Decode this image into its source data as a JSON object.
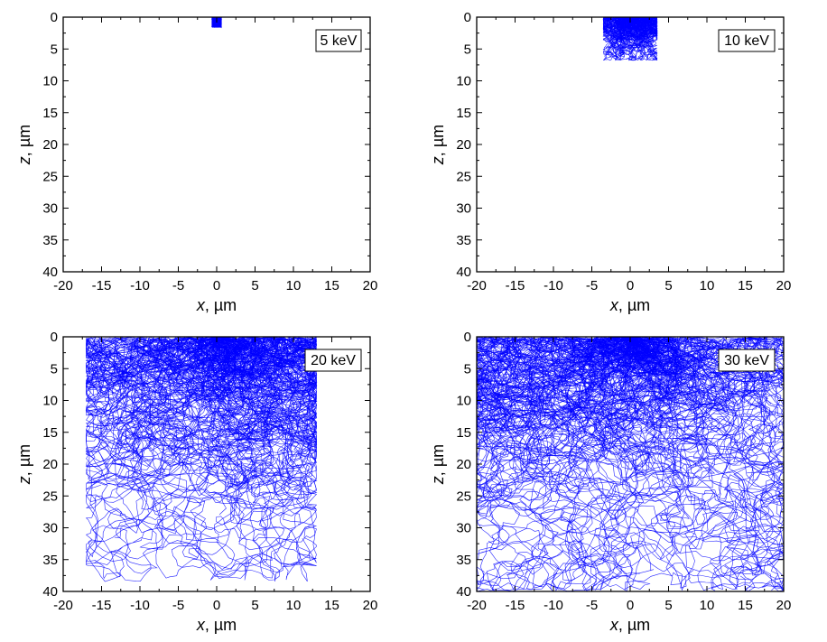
{
  "colors": {
    "trajectory": "#0000ff",
    "axes": "#000000",
    "background": "#ffffff"
  },
  "chart_data": [
    {
      "type": "scatter",
      "title": "",
      "annotation": "5 keV",
      "energy_keV": 5,
      "xlabel_var": "x",
      "xlabel_unit": ", µm",
      "ylabel_var": "z",
      "ylabel_unit": ", µm",
      "xlim": [
        -20,
        20
      ],
      "ylim": [
        40,
        0
      ],
      "xticks": [
        "-20",
        "-15",
        "-10",
        "-5",
        "0",
        "5",
        "10",
        "15",
        "20"
      ],
      "yticks": [
        "0",
        "5",
        "10",
        "15",
        "20",
        "25",
        "30",
        "35",
        "40"
      ],
      "series": [
        {
          "name": "electron trajectories",
          "extent_x": [
            -0.6,
            0.6
          ],
          "max_depth": 1.6,
          "tracks": 40,
          "spread": 0.25
        }
      ]
    },
    {
      "type": "scatter",
      "title": "",
      "annotation": "10 keV",
      "energy_keV": 10,
      "xlabel_var": "x",
      "xlabel_unit": ", µm",
      "ylabel_var": "z",
      "ylabel_unit": ", µm",
      "xlim": [
        -20,
        20
      ],
      "ylim": [
        40,
        0
      ],
      "xticks": [
        "-20",
        "-15",
        "-10",
        "-5",
        "0",
        "5",
        "10",
        "15",
        "20"
      ],
      "yticks": [
        "0",
        "5",
        "10",
        "15",
        "20",
        "25",
        "30",
        "35",
        "40"
      ],
      "series": [
        {
          "name": "electron trajectories",
          "extent_x": [
            -3.5,
            3.5
          ],
          "max_depth": 6.8,
          "tracks": 90,
          "spread": 0.9
        }
      ]
    },
    {
      "type": "scatter",
      "title": "",
      "annotation": "20 keV",
      "energy_keV": 20,
      "xlabel_var": "x",
      "xlabel_unit": ", µm",
      "ylabel_var": "z",
      "ylabel_unit": ", µm",
      "xlim": [
        -20,
        20
      ],
      "ylim": [
        40,
        0
      ],
      "xticks": [
        "-20",
        "-15",
        "-10",
        "-5",
        "0",
        "5",
        "10",
        "15",
        "20"
      ],
      "yticks": [
        "0",
        "5",
        "10",
        "15",
        "20",
        "25",
        "30",
        "35",
        "40"
      ],
      "series": [
        {
          "name": "electron trajectories",
          "extent_x": [
            -17,
            13
          ],
          "max_depth": 38.5,
          "tracks": 110,
          "spread": 2.6
        }
      ]
    },
    {
      "type": "scatter",
      "title": "",
      "annotation": "30 keV",
      "energy_keV": 30,
      "xlabel_var": "x",
      "xlabel_unit": ", µm",
      "ylabel_var": "z",
      "ylabel_unit": ", µm",
      "xlim": [
        -20,
        20
      ],
      "ylim": [
        40,
        0
      ],
      "xticks": [
        "-20",
        "-15",
        "-10",
        "-5",
        "0",
        "5",
        "10",
        "15",
        "20"
      ],
      "yticks": [
        "0",
        "5",
        "10",
        "15",
        "20",
        "25",
        "30",
        "35",
        "40"
      ],
      "series": [
        {
          "name": "electron trajectories",
          "extent_x": [
            -20,
            20
          ],
          "max_depth": 40,
          "tracks": 130,
          "spread": 3.6
        }
      ]
    }
  ]
}
